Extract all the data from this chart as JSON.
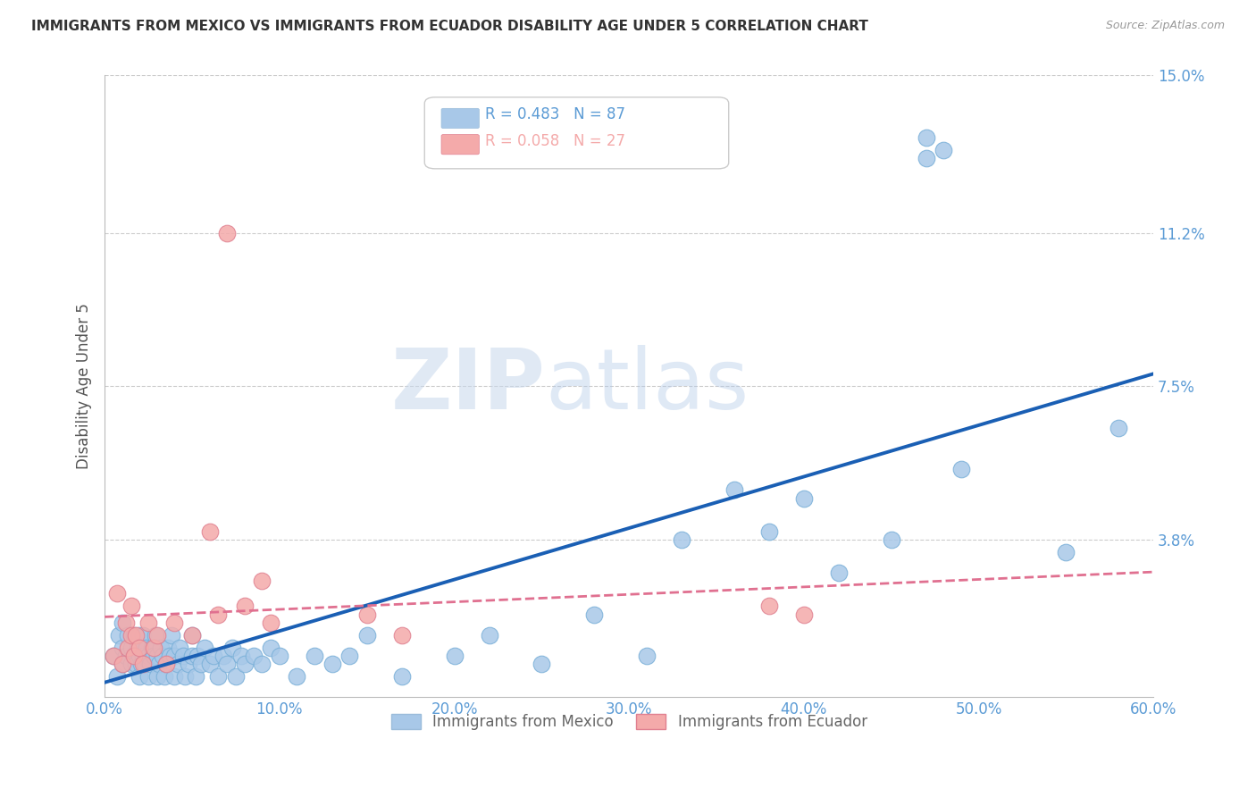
{
  "title": "IMMIGRANTS FROM MEXICO VS IMMIGRANTS FROM ECUADOR DISABILITY AGE UNDER 5 CORRELATION CHART",
  "source": "Source: ZipAtlas.com",
  "ylabel": "Disability Age Under 5",
  "xlim": [
    0.0,
    0.6
  ],
  "ylim": [
    0.0,
    0.15
  ],
  "yticks": [
    0.0,
    0.038,
    0.075,
    0.112,
    0.15
  ],
  "ytick_labels": [
    "",
    "3.8%",
    "7.5%",
    "11.2%",
    "15.0%"
  ],
  "xticks": [
    0.0,
    0.1,
    0.2,
    0.3,
    0.4,
    0.5,
    0.6
  ],
  "xtick_labels": [
    "0.0%",
    "10.0%",
    "20.0%",
    "30.0%",
    "40.0%",
    "50.0%",
    "60.0%"
  ],
  "legend_mexico_label": "Immigrants from Mexico",
  "legend_ecuador_label": "Immigrants from Ecuador",
  "R_mexico": "0.483",
  "N_mexico": "87",
  "R_ecuador": "0.058",
  "N_ecuador": "27",
  "mexico_color": "#a8c8e8",
  "ecuador_color": "#f4aaaa",
  "mexico_line_color": "#1a5fb4",
  "ecuador_line_color": "#e07090",
  "axis_color": "#5b9bd5",
  "title_color": "#333333",
  "watermark_zip": "ZIP",
  "watermark_atlas": "atlas",
  "mexico_x": [
    0.005,
    0.007,
    0.008,
    0.01,
    0.01,
    0.01,
    0.012,
    0.013,
    0.015,
    0.015,
    0.017,
    0.017,
    0.018,
    0.019,
    0.02,
    0.02,
    0.02,
    0.021,
    0.022,
    0.022,
    0.023,
    0.024,
    0.025,
    0.025,
    0.026,
    0.027,
    0.028,
    0.029,
    0.03,
    0.03,
    0.031,
    0.032,
    0.033,
    0.034,
    0.035,
    0.036,
    0.037,
    0.038,
    0.04,
    0.04,
    0.042,
    0.043,
    0.045,
    0.046,
    0.048,
    0.05,
    0.05,
    0.052,
    0.053,
    0.055,
    0.057,
    0.06,
    0.062,
    0.065,
    0.068,
    0.07,
    0.073,
    0.075,
    0.078,
    0.08,
    0.085,
    0.09,
    0.095,
    0.1,
    0.11,
    0.12,
    0.13,
    0.14,
    0.15,
    0.17,
    0.2,
    0.22,
    0.25,
    0.28,
    0.31,
    0.33,
    0.36,
    0.38,
    0.4,
    0.42,
    0.45,
    0.47,
    0.47,
    0.48,
    0.49,
    0.55,
    0.58
  ],
  "mexico_y": [
    0.01,
    0.005,
    0.015,
    0.008,
    0.012,
    0.018,
    0.01,
    0.015,
    0.008,
    0.012,
    0.01,
    0.015,
    0.008,
    0.012,
    0.005,
    0.01,
    0.015,
    0.008,
    0.01,
    0.015,
    0.008,
    0.012,
    0.005,
    0.01,
    0.008,
    0.012,
    0.01,
    0.015,
    0.005,
    0.01,
    0.008,
    0.012,
    0.01,
    0.005,
    0.008,
    0.012,
    0.01,
    0.015,
    0.005,
    0.01,
    0.008,
    0.012,
    0.01,
    0.005,
    0.008,
    0.01,
    0.015,
    0.005,
    0.01,
    0.008,
    0.012,
    0.008,
    0.01,
    0.005,
    0.01,
    0.008,
    0.012,
    0.005,
    0.01,
    0.008,
    0.01,
    0.008,
    0.012,
    0.01,
    0.005,
    0.01,
    0.008,
    0.01,
    0.015,
    0.005,
    0.01,
    0.015,
    0.008,
    0.02,
    0.01,
    0.038,
    0.05,
    0.04,
    0.048,
    0.03,
    0.038,
    0.13,
    0.135,
    0.132,
    0.055,
    0.035,
    0.065
  ],
  "ecuador_x": [
    0.005,
    0.007,
    0.01,
    0.012,
    0.013,
    0.015,
    0.015,
    0.017,
    0.018,
    0.02,
    0.022,
    0.025,
    0.028,
    0.03,
    0.035,
    0.04,
    0.05,
    0.06,
    0.065,
    0.07,
    0.08,
    0.09,
    0.095,
    0.15,
    0.17,
    0.38,
    0.4
  ],
  "ecuador_y": [
    0.01,
    0.025,
    0.008,
    0.018,
    0.012,
    0.015,
    0.022,
    0.01,
    0.015,
    0.012,
    0.008,
    0.018,
    0.012,
    0.015,
    0.008,
    0.018,
    0.015,
    0.04,
    0.02,
    0.112,
    0.022,
    0.028,
    0.018,
    0.02,
    0.015,
    0.022,
    0.02
  ]
}
